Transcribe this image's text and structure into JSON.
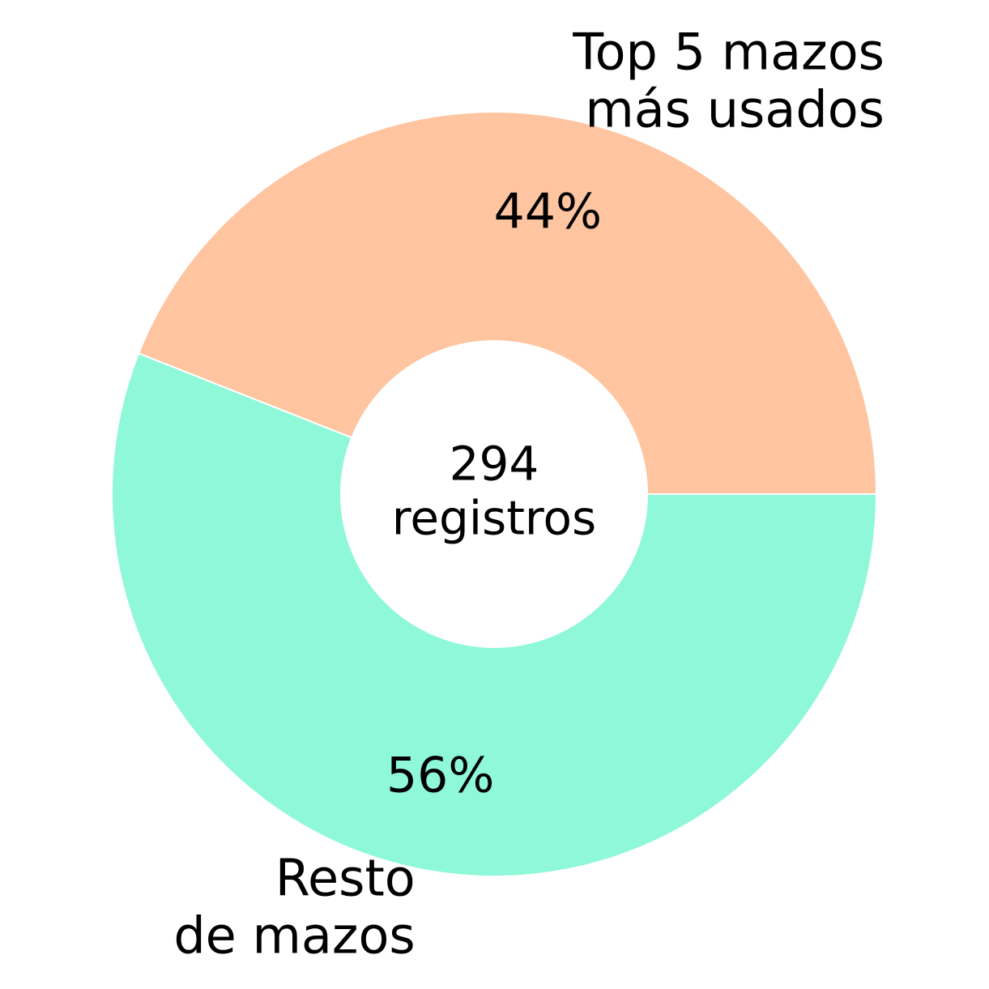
{
  "chart_data": {
    "type": "donut",
    "categories": [
      "Top 5 mazos\nmás usados",
      "Resto\nde mazos"
    ],
    "values": [
      44,
      56
    ],
    "value_labels": [
      "44%",
      "56%"
    ],
    "colors": [
      "#fec5a0",
      "#8ef8d8"
    ],
    "center_label": "294\nregistros"
  }
}
